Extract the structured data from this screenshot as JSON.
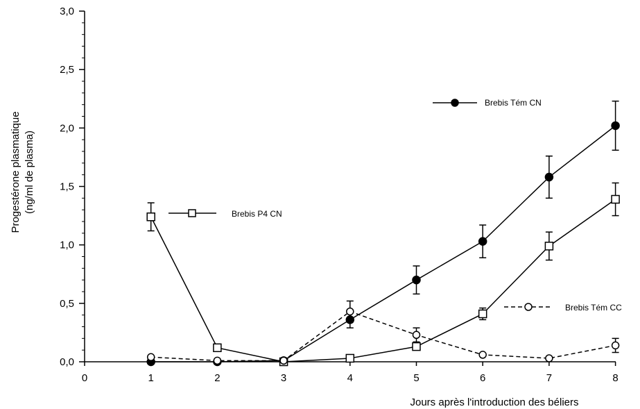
{
  "chart_data": {
    "type": "line",
    "title": "",
    "xlabel": "Jours après l'introduction des béliers",
    "ylabel_line1": "Progestérone plasmatique",
    "ylabel_line2": "(ng/ml de plasma)",
    "xlim": [
      0,
      8
    ],
    "ylim": [
      0,
      3
    ],
    "x_ticks": [
      0,
      1,
      2,
      3,
      4,
      5,
      6,
      7,
      8
    ],
    "x_tick_labels": [
      "0",
      "1",
      "2",
      "3",
      "4",
      "5",
      "6",
      "7",
      "8"
    ],
    "y_ticks": [
      0,
      0.5,
      1,
      1.5,
      2,
      2.5,
      3
    ],
    "y_tick_labels": [
      "0,0",
      "0,5",
      "1,0",
      "1,5",
      "2,0",
      "2,5",
      "3,0"
    ],
    "grid": false,
    "series": [
      {
        "name": "Brebis Tém CN",
        "marker": "filled-circle",
        "line": "solid",
        "x": [
          1,
          2,
          3,
          4,
          5,
          6,
          7,
          8
        ],
        "y": [
          0.0,
          0.0,
          0.01,
          0.36,
          0.7,
          1.03,
          1.58,
          2.02
        ],
        "err": [
          0,
          0,
          0,
          0.07,
          0.12,
          0.14,
          0.18,
          0.21
        ]
      },
      {
        "name": "Brebis P4 CN",
        "marker": "open-square",
        "line": "solid",
        "x": [
          1,
          2,
          3,
          4,
          5,
          6,
          7,
          8
        ],
        "y": [
          1.24,
          0.12,
          0.0,
          0.03,
          0.13,
          0.41,
          0.99,
          1.39
        ],
        "err": [
          0.12,
          0,
          0,
          0,
          0,
          0.05,
          0.12,
          0.14
        ]
      },
      {
        "name": "Brebis Tém CC",
        "marker": "open-circle",
        "line": "dashed",
        "x": [
          1,
          2,
          3,
          4,
          5,
          6,
          7,
          8
        ],
        "y": [
          0.04,
          0.01,
          0.01,
          0.43,
          0.23,
          0.06,
          0.03,
          0.14
        ],
        "err": [
          0,
          0,
          0,
          0.09,
          0.06,
          0,
          0,
          0.06
        ]
      }
    ],
    "legend_placement": "inline labels next to lines"
  }
}
